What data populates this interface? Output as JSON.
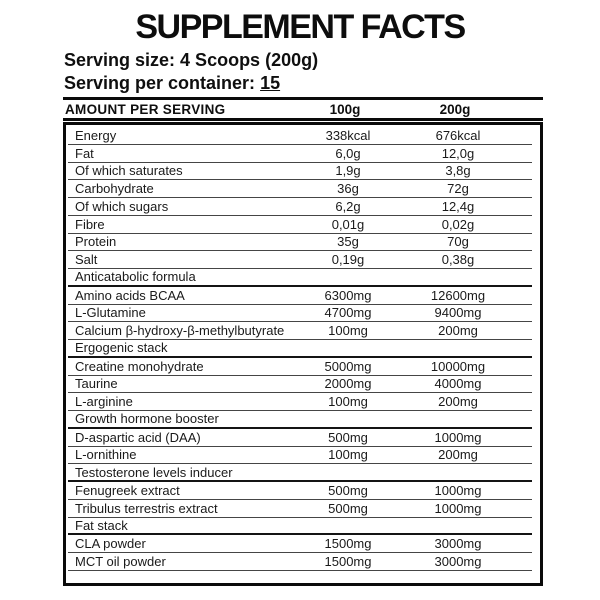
{
  "title": "SUPPLEMENT FACTS",
  "serving": {
    "size_label": "Serving size:",
    "size_value": "4 Scoops (200g)",
    "container_label": "Serving per container:",
    "container_value": "15"
  },
  "table": {
    "header": {
      "amount_label": "AMOUNT PER SERVING",
      "col_100g": "100g",
      "col_200g": "200g"
    },
    "rows": [
      {
        "type": "data",
        "label": "Energy",
        "per_100g": "338kcal",
        "per_200g": "676kcal"
      },
      {
        "type": "data",
        "label": "Fat",
        "per_100g": "6,0g",
        "per_200g": "12,0g"
      },
      {
        "type": "data",
        "label": "Of which saturates",
        "per_100g": "1,9g",
        "per_200g": "3,8g"
      },
      {
        "type": "data",
        "label": "Carbohydrate",
        "per_100g": "36g",
        "per_200g": "72g"
      },
      {
        "type": "data",
        "label": "Of which sugars",
        "per_100g": "6,2g",
        "per_200g": "12,4g"
      },
      {
        "type": "data",
        "label": "Fibre",
        "per_100g": "0,01g",
        "per_200g": "0,02g"
      },
      {
        "type": "data",
        "label": "Protein",
        "per_100g": "35g",
        "per_200g": "70g"
      },
      {
        "type": "data",
        "label": "Salt",
        "per_100g": "0,19g",
        "per_200g": "0,38g"
      },
      {
        "type": "section",
        "label": "Anticatabolic formula",
        "per_100g": "",
        "per_200g": ""
      },
      {
        "type": "data",
        "label": "Amino acids BCAA",
        "per_100g": "6300mg",
        "per_200g": "12600mg"
      },
      {
        "type": "data",
        "label": "L-Glutamine",
        "per_100g": "4700mg",
        "per_200g": "9400mg"
      },
      {
        "type": "data",
        "label": "Calcium β-hydroxy-β-methylbutyrate",
        "per_100g": "100mg",
        "per_200g": "200mg"
      },
      {
        "type": "section",
        "label": "Ergogenic stack",
        "per_100g": "",
        "per_200g": ""
      },
      {
        "type": "data",
        "label": "Creatine monohydrate",
        "per_100g": "5000mg",
        "per_200g": "10000mg"
      },
      {
        "type": "data",
        "label": "Taurine",
        "per_100g": "2000mg",
        "per_200g": "4000mg"
      },
      {
        "type": "data",
        "label": "L-arginine",
        "per_100g": "100mg",
        "per_200g": "200mg"
      },
      {
        "type": "section",
        "label": "Growth hormone booster",
        "per_100g": "",
        "per_200g": ""
      },
      {
        "type": "data",
        "label": "D-aspartic acid (DAA)",
        "per_100g": "500mg",
        "per_200g": "1000mg"
      },
      {
        "type": "data",
        "label": "L-ornithine",
        "per_100g": "100mg",
        "per_200g": "200mg"
      },
      {
        "type": "section",
        "label": "Testosterone levels inducer",
        "per_100g": "",
        "per_200g": ""
      },
      {
        "type": "data",
        "label": "Fenugreek extract",
        "per_100g": "500mg",
        "per_200g": "1000mg"
      },
      {
        "type": "data",
        "label": "Tribulus terrestris extract",
        "per_100g": "500mg",
        "per_200g": "1000mg"
      },
      {
        "type": "section",
        "label": "Fat stack",
        "per_100g": "",
        "per_200g": ""
      },
      {
        "type": "data",
        "label": "CLA powder",
        "per_100g": "1500mg",
        "per_200g": "3000mg"
      },
      {
        "type": "data",
        "label": "MCT oil powder",
        "per_100g": "1500mg",
        "per_200g": "3000mg"
      }
    ]
  },
  "colors": {
    "text": "#171717",
    "line": "#454545",
    "border": "#0a0a0a",
    "background": "#ffffff"
  }
}
